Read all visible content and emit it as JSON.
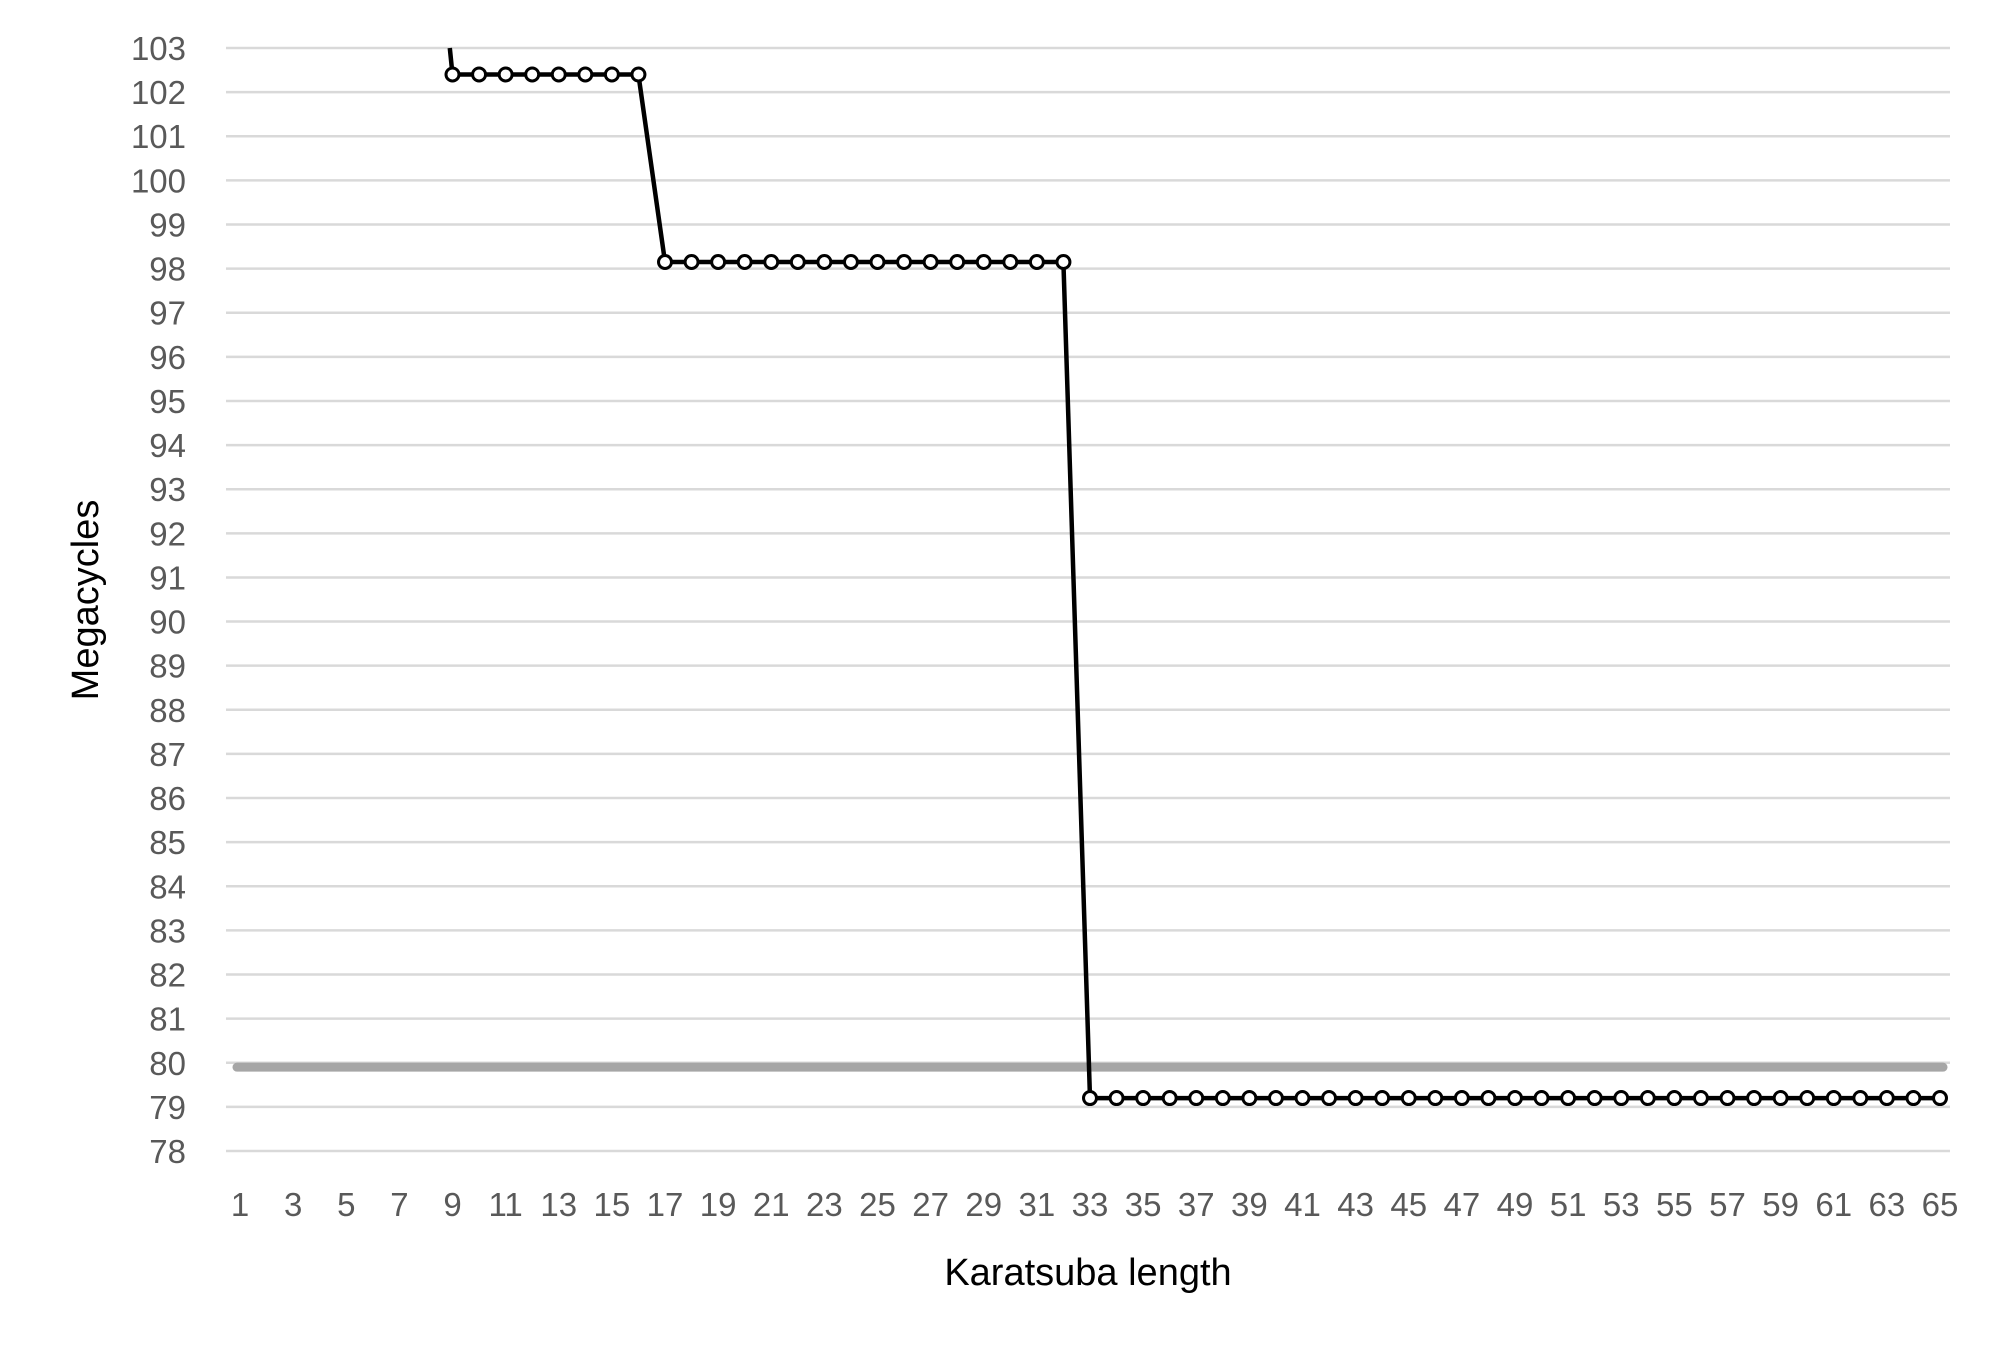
{
  "chart_data": {
    "type": "line",
    "title": "",
    "xlabel": "Karatsuba length",
    "ylabel": "Megacycles",
    "ylim": [
      78,
      103
    ],
    "yticks": [
      "78",
      "79",
      "80",
      "81",
      "82",
      "83",
      "84",
      "85",
      "86",
      "87",
      "88",
      "89",
      "90",
      "91",
      "92",
      "93",
      "94",
      "95",
      "96",
      "97",
      "98",
      "99",
      "100",
      "101",
      "102",
      "103"
    ],
    "xlim": [
      1,
      65
    ],
    "xticks": [
      "1",
      "3",
      "5",
      "7",
      "9",
      "11",
      "13",
      "15",
      "17",
      "19",
      "21",
      "23",
      "25",
      "27",
      "29",
      "31",
      "33",
      "35",
      "37",
      "39",
      "41",
      "43",
      "45",
      "47",
      "49",
      "51",
      "53",
      "55",
      "57",
      "59",
      "61",
      "63",
      "65"
    ],
    "grid": true,
    "legend": "none",
    "series": [
      {
        "style": "black-line-with-open-circle-markers",
        "segments": [
          {
            "x": [
              9,
              16
            ],
            "y": 102.4
          },
          {
            "x": [
              17,
              32
            ],
            "y": 98.15
          },
          {
            "x": [
              33,
              65
            ],
            "y": 79.2
          }
        ],
        "entry": {
          "x": 8.9,
          "y": 103
        },
        "color": "#000000"
      },
      {
        "style": "thick-gray-reference-line",
        "x": [
          1,
          65
        ],
        "y": 79.9,
        "color": "#a6a6a6"
      }
    ],
    "gridline_color": "#d9d9d9"
  }
}
